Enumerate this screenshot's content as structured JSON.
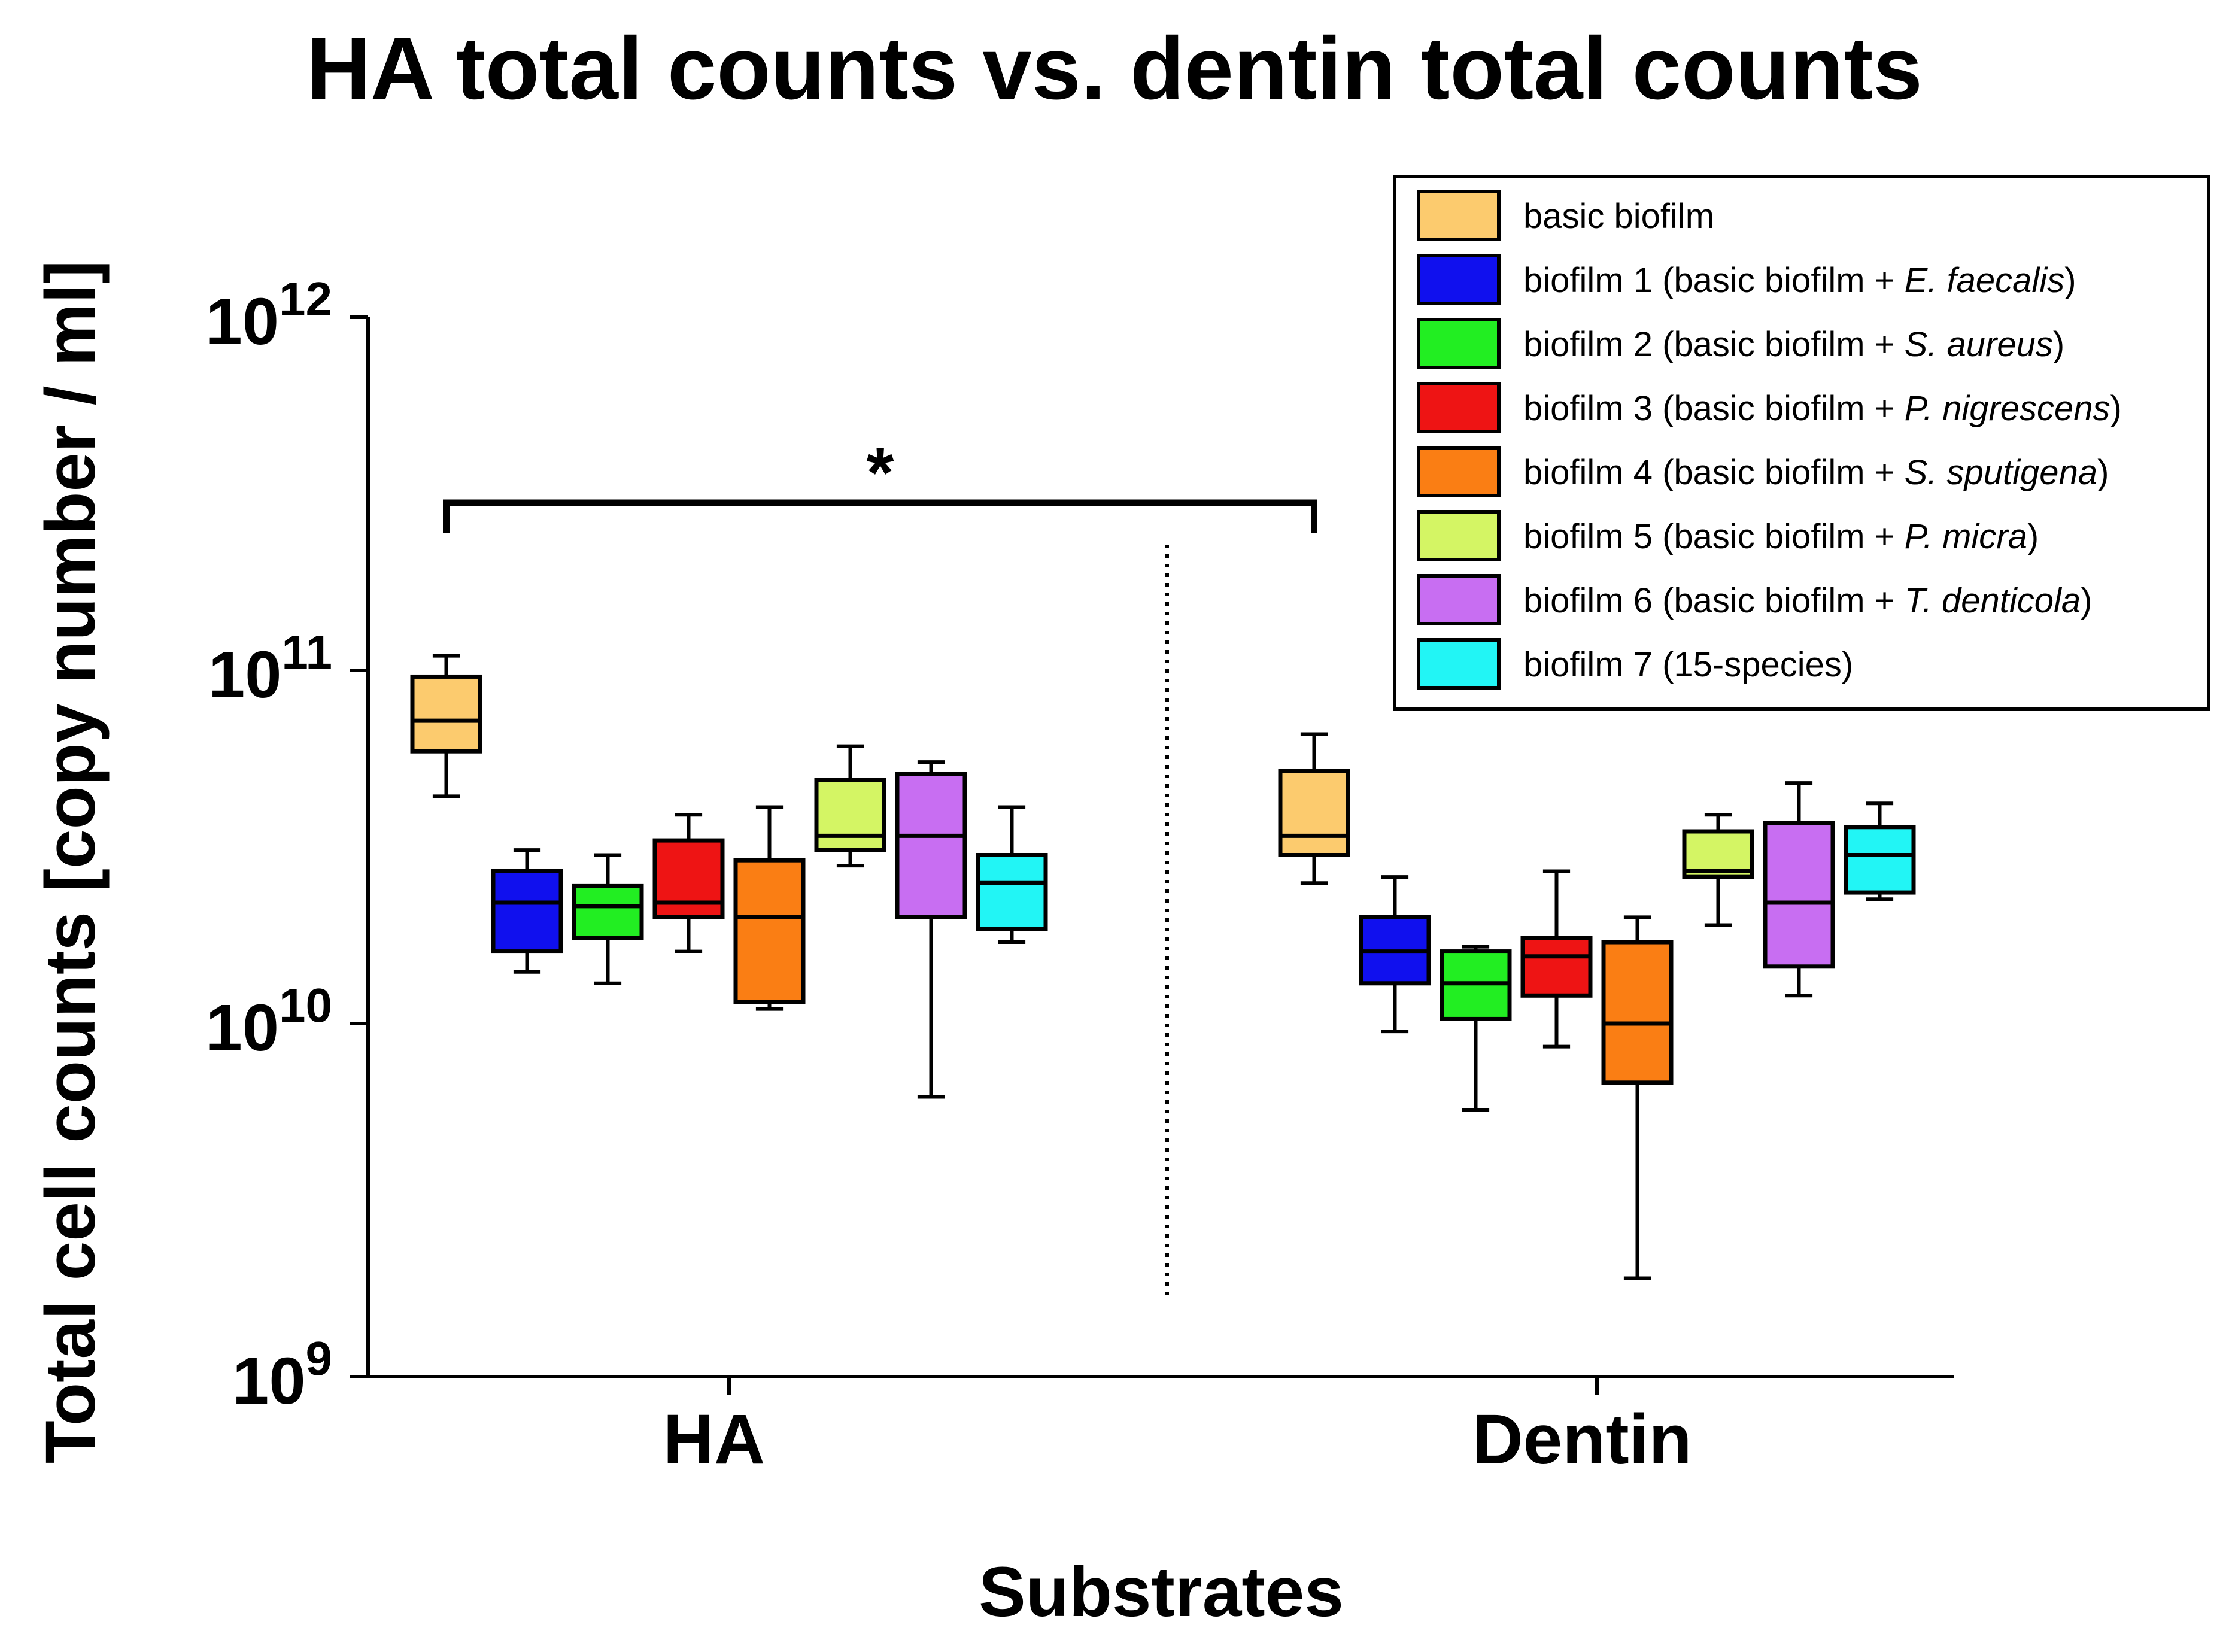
{
  "chart_data": {
    "type": "box",
    "title": "HA total counts vs. dentin total counts",
    "xlabel": "Substrates",
    "ylabel": "Total cell counts [copy number / ml]",
    "yscale": "log10",
    "ylim": [
      1000000000.0,
      1000000000000.0
    ],
    "yticks": [
      {
        "base": "10",
        "exp": "9",
        "value": 1000000000.0
      },
      {
        "base": "10",
        "exp": "10",
        "value": 10000000000.0
      },
      {
        "base": "10",
        "exp": "11",
        "value": 100000000000.0
      },
      {
        "base": "10",
        "exp": "12",
        "value": 1000000000000.0
      }
    ],
    "categories": [
      "HA",
      "Dentin"
    ],
    "significance": {
      "label": "*",
      "between": [
        "HA",
        "Dentin"
      ],
      "target": "basic biofilm"
    },
    "legend_position": "top-right",
    "series": [
      {
        "name": "basic biofilm",
        "color": "#FCCB6E",
        "legend": [
          {
            "t": "basic biofilm",
            "i": false
          }
        ],
        "boxes": [
          {
            "category": "HA",
            "whislo": 44000000000.0,
            "q1": 59000000000.0,
            "median": 72000000000.0,
            "q3": 96000000000.0,
            "whishi": 110000000000.0
          },
          {
            "category": "Dentin",
            "whislo": 25000000000.0,
            "q1": 30000000000.0,
            "median": 34000000000.0,
            "q3": 52000000000.0,
            "whishi": 66000000000.0
          }
        ]
      },
      {
        "name": "biofilm 1 (basic biofilm + E. faecalis)",
        "color": "#1010EE",
        "legend": [
          {
            "t": "biofilm 1 (basic biofilm + ",
            "i": false
          },
          {
            "t": "E. faecalis",
            "i": true
          },
          {
            "t": ")",
            "i": false
          }
        ],
        "boxes": [
          {
            "category": "HA",
            "whislo": 14000000000.0,
            "q1": 16000000000.0,
            "median": 22000000000.0,
            "q3": 27000000000.0,
            "whishi": 31000000000.0
          },
          {
            "category": "Dentin",
            "whislo": 9500000000.0,
            "q1": 13000000000.0,
            "median": 16000000000.0,
            "q3": 20000000000.0,
            "whishi": 26000000000.0
          }
        ]
      },
      {
        "name": "biofilm 2 (basic biofilm + S. aureus)",
        "color": "#22EE22",
        "legend": [
          {
            "t": "biofilm 2 (basic biofilm + ",
            "i": false
          },
          {
            "t": "S. aureus",
            "i": true
          },
          {
            "t": ")",
            "i": false
          }
        ],
        "boxes": [
          {
            "category": "HA",
            "whislo": 13000000000.0,
            "q1": 17500000000.0,
            "median": 21500000000.0,
            "q3": 24500000000.0,
            "whishi": 30000000000.0
          },
          {
            "category": "Dentin",
            "whislo": 5700000000.0,
            "q1": 10300000000.0,
            "median": 13000000000.0,
            "q3": 16000000000.0,
            "whishi": 16500000000.0
          }
        ]
      },
      {
        "name": "biofilm 3 (basic biofilm + P. nigrescens)",
        "color": "#EE1414",
        "legend": [
          {
            "t": "biofilm 3 (basic biofilm + ",
            "i": false
          },
          {
            "t": "P. nigrescens",
            "i": true
          },
          {
            "t": ")",
            "i": false
          }
        ],
        "boxes": [
          {
            "category": "HA",
            "whislo": 16000000000.0,
            "q1": 20000000000.0,
            "median": 22000000000.0,
            "q3": 33000000000.0,
            "whishi": 39000000000.0
          },
          {
            "category": "Dentin",
            "whislo": 8600000000.0,
            "q1": 12000000000.0,
            "median": 15500000000.0,
            "q3": 17500000000.0,
            "whishi": 27000000000.0
          }
        ]
      },
      {
        "name": "biofilm 4 (basic biofilm + S. sputigena)",
        "color": "#FA7E14",
        "legend": [
          {
            "t": "biofilm 4 (basic biofilm + ",
            "i": false
          },
          {
            "t": "S. sputigena",
            "i": true
          },
          {
            "t": ")",
            "i": false
          }
        ],
        "boxes": [
          {
            "category": "HA",
            "whislo": 11000000000.0,
            "q1": 11500000000.0,
            "median": 20000000000.0,
            "q3": 29000000000.0,
            "whishi": 41000000000.0
          },
          {
            "category": "Dentin",
            "whislo": 1900000000.0,
            "q1": 6800000000.0,
            "median": 10000000000.0,
            "q3": 17000000000.0,
            "whishi": 20000000000.0
          }
        ]
      },
      {
        "name": "biofilm 5 (basic biofilm + P. micra)",
        "color": "#D4F564",
        "legend": [
          {
            "t": "biofilm 5 (basic biofilm + ",
            "i": false
          },
          {
            "t": "P. micra",
            "i": true
          },
          {
            "t": ")",
            "i": false
          }
        ],
        "boxes": [
          {
            "category": "HA",
            "whislo": 28000000000.0,
            "q1": 31000000000.0,
            "median": 34000000000.0,
            "q3": 49000000000.0,
            "whishi": 61000000000.0
          },
          {
            "category": "Dentin",
            "whislo": 19000000000.0,
            "q1": 26000000000.0,
            "median": 27000000000.0,
            "q3": 35000000000.0,
            "whishi": 39000000000.0
          }
        ]
      },
      {
        "name": "biofilm 6 (basic biofilm + T. denticola)",
        "color": "#C86EF2",
        "legend": [
          {
            "t": "biofilm 6 (basic biofilm + ",
            "i": false
          },
          {
            "t": "T. denticola",
            "i": true
          },
          {
            "t": ")",
            "i": false
          }
        ],
        "boxes": [
          {
            "category": "HA",
            "whislo": 6200000000.0,
            "q1": 20000000000.0,
            "median": 34000000000.0,
            "q3": 51000000000.0,
            "whishi": 55000000000.0
          },
          {
            "category": "Dentin",
            "whislo": 12000000000.0,
            "q1": 14500000000.0,
            "median": 22000000000.0,
            "q3": 37000000000.0,
            "whishi": 48000000000.0
          }
        ]
      },
      {
        "name": "biofilm 7 (15-species)",
        "color": "#22F5F5",
        "legend": [
          {
            "t": "biofilm 7 (15-species)",
            "i": false
          }
        ],
        "boxes": [
          {
            "category": "HA",
            "whislo": 17000000000.0,
            "q1": 18500000000.0,
            "median": 25000000000.0,
            "q3": 30000000000.0,
            "whishi": 41000000000.0
          },
          {
            "category": "Dentin",
            "whislo": 22500000000.0,
            "q1": 23500000000.0,
            "median": 30000000000.0,
            "q3": 36000000000.0,
            "whishi": 42000000000.0
          }
        ]
      }
    ]
  }
}
